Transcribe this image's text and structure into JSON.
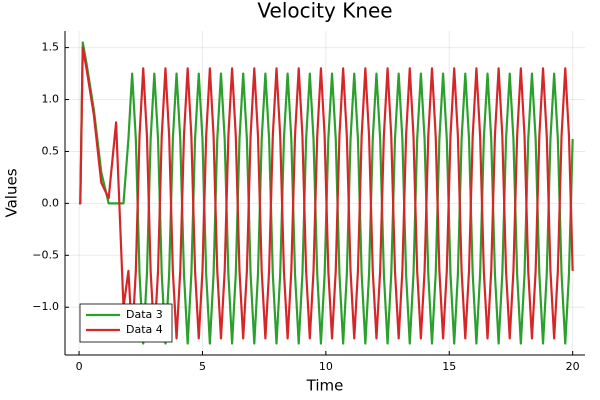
{
  "chart_data": {
    "type": "line",
    "title": "Velocity Knee",
    "x_label": "Time",
    "y_label": "Values",
    "xlim": [
      -0.57,
      20.5
    ],
    "ylim": [
      -1.46,
      1.66
    ],
    "xticks": [
      0,
      5,
      10,
      15,
      20
    ],
    "yticks": [
      {
        "value": -1,
        "label": "−1.0"
      },
      {
        "value": -0.5,
        "label": "−0.5"
      },
      {
        "value": 0,
        "label": "0.0"
      },
      0.5,
      {
        "value": 1,
        "label": "1.0"
      },
      1.5
    ],
    "grid": true,
    "legend": "bottom-left",
    "x": [
      0,
      0.05,
      0.15,
      0.3,
      0.6,
      0.9,
      1.2,
      1.5,
      1.8,
      2,
      2.15,
      2.3,
      2.45,
      2.6,
      2.75,
      2.9,
      3.05,
      3.2,
      3.35,
      3.5,
      3.65,
      3.8,
      3.95,
      4.1,
      4.25,
      4.4,
      4.55,
      4.7,
      4.85,
      5,
      5.15,
      5.3,
      5.45,
      5.6,
      5.75,
      5.9,
      6.05,
      6.2,
      6.35,
      6.5,
      6.65,
      6.8,
      6.95,
      7.1,
      7.25,
      7.4,
      7.55,
      7.7,
      7.85,
      8,
      8.15,
      8.3,
      8.45,
      8.6,
      8.75,
      8.9,
      9.05,
      9.2,
      9.35,
      9.5,
      9.65,
      9.8,
      9.95,
      10.1,
      10.25,
      10.4,
      10.55,
      10.7,
      10.85,
      11,
      11.15,
      11.3,
      11.45,
      11.6,
      11.75,
      11.9,
      12.05,
      12.2,
      12.35,
      12.5,
      12.65,
      12.8,
      12.95,
      13.1,
      13.25,
      13.4,
      13.55,
      13.7,
      13.85,
      14,
      14.15,
      14.3,
      14.45,
      14.6,
      14.75,
      14.9,
      15.05,
      15.2,
      15.35,
      15.5,
      15.65,
      15.8,
      15.95,
      16.1,
      16.25,
      16.4,
      16.55,
      16.7,
      16.85,
      17,
      17.15,
      17.3,
      17.45,
      17.6,
      17.75,
      17.9,
      18.05,
      18.2,
      18.35,
      18.5,
      18.65,
      18.8,
      18.95,
      19.1,
      19.25,
      19.4,
      19.55,
      19.7,
      19.85,
      20
    ],
    "series": [
      {
        "name": "Data 3",
        "color": "#2ca02c",
        "values": [
          0,
          0,
          1.55,
          1.35,
          0.9,
          0.3,
          0,
          0,
          0,
          0.62,
          1.25,
          0.62,
          -0.68,
          -1.35,
          -0.68,
          0.62,
          1.25,
          0.62,
          -0.68,
          -1.35,
          -0.68,
          0.62,
          1.25,
          0.62,
          -0.68,
          -1.35,
          -0.68,
          0.62,
          1.25,
          0.62,
          -0.68,
          -1.35,
          -0.68,
          0.62,
          1.25,
          0.62,
          -0.68,
          -1.35,
          -0.68,
          0.62,
          1.25,
          0.62,
          -0.68,
          -1.35,
          -0.68,
          0.62,
          1.25,
          0.62,
          -0.68,
          -1.35,
          -0.68,
          0.62,
          1.25,
          0.62,
          -0.68,
          -1.35,
          -0.68,
          0.62,
          1.25,
          0.62,
          -0.68,
          -1.35,
          -0.68,
          0.62,
          1.25,
          0.62,
          -0.68,
          -1.35,
          -0.68,
          0.62,
          1.25,
          0.62,
          -0.68,
          -1.35,
          -0.68,
          0.62,
          1.25,
          0.62,
          -0.68,
          -1.35,
          -0.68,
          0.62,
          1.25,
          0.62,
          -0.68,
          -1.35,
          -0.68,
          0.62,
          1.25,
          0.62,
          -0.68,
          -1.35,
          -0.68,
          0.62,
          1.25,
          0.62,
          -0.68,
          -1.35,
          -0.68,
          0.62,
          1.25,
          0.62,
          -0.68,
          -1.35,
          -0.68,
          0.62,
          1.25,
          0.62,
          -0.68,
          -1.35,
          -0.68,
          0.62,
          1.25,
          0.62,
          -0.68,
          -1.35,
          -0.68,
          0.62,
          1.25,
          0.62,
          -0.68,
          -1.35,
          -0.68,
          0.62,
          1.25,
          0.62,
          -0.68,
          -1.35,
          -0.68,
          0.62
        ]
      },
      {
        "name": "Data 4",
        "color": "#d62728",
        "values": [
          0,
          0,
          1.5,
          1.3,
          0.85,
          0.2,
          0.05,
          0.78,
          -1.0,
          -0.65,
          -1.3,
          -0.65,
          0.65,
          1.3,
          0.65,
          -0.65,
          -1.3,
          -0.65,
          0.65,
          1.3,
          0.65,
          -0.65,
          -1.3,
          -0.65,
          0.65,
          1.3,
          0.65,
          -0.65,
          -1.3,
          -0.65,
          0.65,
          1.3,
          0.65,
          -0.65,
          -1.3,
          -0.65,
          0.65,
          1.3,
          0.65,
          -0.65,
          -1.3,
          -0.65,
          0.65,
          1.3,
          0.65,
          -0.65,
          -1.3,
          -0.65,
          0.65,
          1.3,
          0.65,
          -0.65,
          -1.3,
          -0.65,
          0.65,
          1.3,
          0.65,
          -0.65,
          -1.3,
          -0.65,
          0.65,
          1.3,
          0.65,
          -0.65,
          -1.3,
          -0.65,
          0.65,
          1.3,
          0.65,
          -0.65,
          -1.3,
          -0.65,
          0.65,
          1.3,
          0.65,
          -0.65,
          -1.3,
          -0.65,
          0.65,
          1.3,
          0.65,
          -0.65,
          -1.3,
          -0.65,
          0.65,
          1.3,
          0.65,
          -0.65,
          -1.3,
          -0.65,
          0.65,
          1.3,
          0.65,
          -0.65,
          -1.3,
          -0.65,
          0.65,
          1.3,
          0.65,
          -0.65,
          -1.3,
          -0.65,
          0.65,
          1.3,
          0.65,
          -0.65,
          -1.3,
          -0.65,
          0.65,
          1.3,
          0.65,
          -0.65,
          -1.3,
          -0.65,
          0.65,
          1.3,
          0.65,
          -0.65,
          -1.3,
          -0.65,
          0.65,
          1.3,
          0.65,
          -0.65,
          -1.3,
          -0.65,
          0.65,
          1.3,
          0.65,
          -0.65
        ]
      }
    ]
  }
}
